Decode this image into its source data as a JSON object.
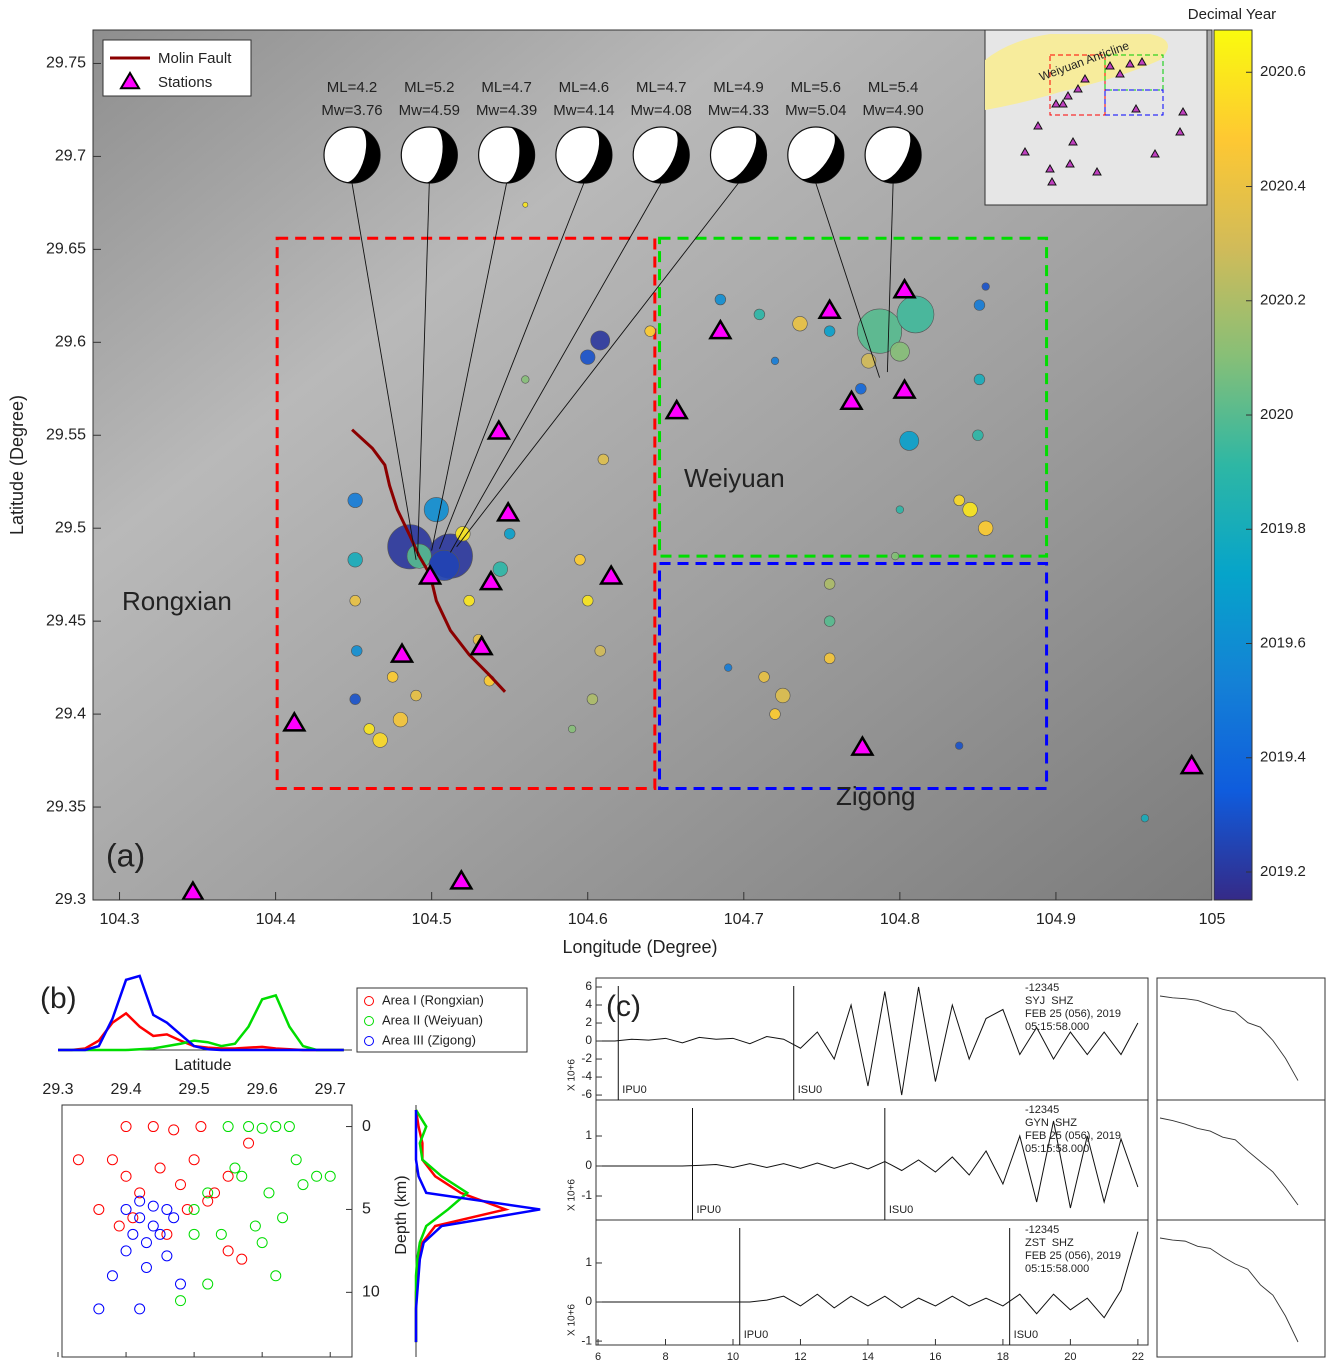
{
  "chart_data": [
    {
      "type": "map",
      "panel_label": "(a)",
      "x_label": "Longitude (Degree)",
      "y_label": "Latitude (Degree)",
      "xlim": [
        104.283,
        105
      ],
      "ylim": [
        29.3,
        29.768
      ],
      "xticks": [
        104.3,
        104.4,
        104.5,
        104.6,
        104.7,
        104.8,
        104.9,
        105
      ],
      "yticks": [
        29.3,
        29.35,
        29.4,
        29.45,
        29.5,
        29.55,
        29.6,
        29.65,
        29.7,
        29.75
      ],
      "colorbar": {
        "label": "Decimal Year",
        "lim": [
          2019.151,
          2020.674
        ],
        "ticks": [
          2019.2,
          2019.4,
          2019.6,
          2019.8,
          2020,
          2020.2,
          2020.4,
          2020.6
        ]
      },
      "fault": {
        "name": "Molin Fault",
        "color": "#8b0000",
        "x": [
          104.449,
          104.462,
          104.47,
          104.473,
          104.478,
          104.486,
          104.492,
          104.499,
          104.503,
          104.512,
          104.524,
          104.537,
          104.547
        ],
        "y": [
          29.553,
          29.543,
          29.534,
          29.523,
          29.51,
          29.496,
          29.485,
          29.475,
          29.461,
          29.445,
          29.432,
          29.421,
          29.412
        ]
      },
      "stations": {
        "name": "Stations",
        "color": "#ff00ff",
        "x": [
          104.347,
          104.519,
          104.412,
          104.481,
          104.499,
          104.532,
          104.538,
          104.549,
          104.543,
          104.615,
          104.657,
          104.685,
          104.755,
          104.769,
          104.803,
          104.803,
          104.776,
          104.987
        ],
        "y": [
          29.304,
          29.31,
          29.395,
          29.432,
          29.474,
          29.436,
          29.471,
          29.508,
          29.552,
          29.474,
          29.563,
          29.606,
          29.617,
          29.568,
          29.628,
          29.574,
          29.382,
          29.372
        ]
      },
      "events": {
        "x": [
          104.451,
          104.451,
          104.451,
          104.452,
          104.451,
          104.486,
          104.512,
          104.503,
          104.492,
          104.508,
          104.467,
          104.48,
          104.49,
          104.475,
          104.46,
          104.524,
          104.53,
          104.537,
          104.52,
          104.544,
          104.55,
          104.595,
          104.6,
          104.608,
          104.603,
          104.61,
          104.59,
          104.608,
          104.6,
          104.64,
          104.56,
          104.56,
          104.685,
          104.71,
          104.736,
          104.755,
          104.72,
          104.787,
          104.81,
          104.78,
          104.8,
          104.775,
          104.806,
          104.851,
          104.851,
          104.85,
          104.855,
          104.845,
          104.855,
          104.838,
          104.8,
          104.797,
          104.713,
          104.725,
          104.72,
          104.755,
          104.755,
          104.755,
          104.69,
          104.838,
          104.957
        ],
        "y": [
          29.515,
          29.483,
          29.461,
          29.434,
          29.408,
          29.49,
          29.485,
          29.51,
          29.485,
          29.48,
          29.386,
          29.397,
          29.41,
          29.42,
          29.392,
          29.461,
          29.44,
          29.418,
          29.497,
          29.478,
          29.497,
          29.483,
          29.461,
          29.434,
          29.408,
          29.537,
          29.392,
          29.601,
          29.592,
          29.606,
          29.58,
          29.674,
          29.623,
          29.615,
          29.61,
          29.606,
          29.59,
          29.606,
          29.615,
          29.59,
          29.595,
          29.575,
          29.547,
          29.62,
          29.58,
          29.55,
          29.63,
          29.51,
          29.5,
          29.515,
          29.51,
          29.485,
          29.42,
          29.41,
          29.4,
          29.45,
          29.47,
          29.43,
          29.425,
          29.383,
          29.344
        ],
        "size": [
          3,
          3,
          2.5,
          2.5,
          2.5,
          5.5,
          5.5,
          4,
          4,
          4.5,
          3,
          3,
          2.5,
          2.5,
          2.5,
          2.5,
          2.5,
          2.5,
          3,
          3,
          2.5,
          2.5,
          2.5,
          2.5,
          2.5,
          2.5,
          2,
          3.5,
          3,
          2.5,
          2,
          1.5,
          2.5,
          2.5,
          3,
          2.5,
          2,
          5.5,
          5,
          3,
          3.5,
          2.5,
          3.5,
          2.5,
          2.5,
          2.5,
          2,
          3,
          3,
          2.5,
          2,
          2,
          2.5,
          3,
          2.5,
          2.5,
          2.5,
          2.5,
          2,
          2,
          2
        ],
        "year": [
          2019.5,
          2019.8,
          2020.4,
          2019.6,
          2019.3,
          2019.2,
          2019.2,
          2019.6,
          2020,
          2019.25,
          2020.55,
          2020.45,
          2020.4,
          2020.5,
          2020.6,
          2020.6,
          2020.4,
          2020.5,
          2020.6,
          2019.9,
          2019.7,
          2020.5,
          2020.6,
          2020.3,
          2020.2,
          2020.35,
          2020.1,
          2019.2,
          2019.3,
          2020.5,
          2020.1,
          2020.6,
          2019.6,
          2019.9,
          2020.4,
          2019.7,
          2019.5,
          2020,
          2019.95,
          2020.3,
          2020.1,
          2019.4,
          2019.7,
          2019.5,
          2019.8,
          2019.9,
          2019.3,
          2020.6,
          2020.5,
          2020.55,
          2019.9,
          2020.1,
          2020.4,
          2020.35,
          2020.5,
          2020,
          2020.2,
          2020.45,
          2019.5,
          2019.3,
          2019.8
        ]
      },
      "mechanisms": [
        {
          "ml": "ML=4.2",
          "mw": "Mw=3.76",
          "x": 104.49,
          "y": 29.483
        },
        {
          "ml": "ML=5.2",
          "mw": "Mw=4.59",
          "x": 104.491,
          "y": 29.485
        },
        {
          "ml": "ML=4.7",
          "mw": "Mw=4.39",
          "x": 104.5,
          "y": 29.488
        },
        {
          "ml": "ML=4.6",
          "mw": "Mw=4.14",
          "x": 104.505,
          "y": 29.489
        },
        {
          "ml": "ML=4.7",
          "mw": "Mw=4.08",
          "x": 104.512,
          "y": 29.487
        },
        {
          "ml": "ML=4.9",
          "mw": "Mw=4.33",
          "x": 104.516,
          "y": 29.49
        },
        {
          "ml": "ML=5.6",
          "mw": "Mw=5.04",
          "x": 104.787,
          "y": 29.581
        },
        {
          "ml": "ML=5.4",
          "mw": "Mw=4.90",
          "x": 104.792,
          "y": 29.584
        }
      ],
      "regions": [
        {
          "color": "#ff0000",
          "xlim": [
            104.401,
            104.643
          ],
          "ylim": [
            29.36,
            29.656
          ]
        },
        {
          "color": "#00dd00",
          "xlim": [
            104.646,
            104.894
          ],
          "ylim": [
            29.485,
            29.656
          ]
        },
        {
          "color": "#0000ff",
          "xlim": [
            104.646,
            104.894
          ],
          "ylim": [
            29.36,
            29.481
          ]
        }
      ],
      "places": [
        "Rongxian",
        "Weiyuan",
        "Zigong"
      ],
      "inset_label": "Weiyuan Anticline"
    },
    {
      "type": "density",
      "panel_label": "(b)",
      "x_label": "Latitude",
      "xlim": [
        29.3,
        29.732
      ],
      "ylim": [
        0,
        1
      ],
      "xticks": [
        29.3,
        29.4,
        29.5,
        29.6,
        29.7
      ],
      "x": [
        29.3,
        29.32,
        29.34,
        29.36,
        29.38,
        29.4,
        29.42,
        29.44,
        29.46,
        29.48,
        29.5,
        29.52,
        29.54,
        29.56,
        29.58,
        29.6,
        29.62,
        29.64,
        29.66,
        29.68,
        29.7,
        29.72
      ],
      "series": [
        {
          "color": "#ff0000",
          "values": [
            0,
            0,
            0.02,
            0.12,
            0.35,
            0.47,
            0.3,
            0.18,
            0.2,
            0.12,
            0.05,
            0.03,
            0.02,
            0.02,
            0.03,
            0.04,
            0.02,
            0.01,
            0,
            0,
            0,
            0
          ]
        },
        {
          "color": "#00dd00",
          "values": [
            0,
            0,
            0,
            0,
            0,
            0,
            0.01,
            0.02,
            0.05,
            0.08,
            0.12,
            0.1,
            0.05,
            0.08,
            0.3,
            0.65,
            0.7,
            0.3,
            0.05,
            0,
            0,
            0
          ]
        },
        {
          "color": "#0000ff",
          "values": [
            0,
            0,
            0,
            0.05,
            0.4,
            0.9,
            0.95,
            0.45,
            0.35,
            0.2,
            0.05,
            0.01,
            0,
            0,
            0,
            0,
            0,
            0,
            0,
            0,
            0,
            0
          ]
        }
      ]
    },
    {
      "type": "scatter",
      "xlim": [
        29.3,
        29.732
      ],
      "ylim": [
        -1.3,
        13.9
      ],
      "y_inverted": true,
      "yticks": [
        0,
        5,
        10
      ],
      "series": [
        {
          "name": "Area I (Rongxian)",
          "color": "#ff0000",
          "x": [
            29.38,
            29.4,
            29.42,
            29.45,
            29.48,
            29.5,
            29.52,
            29.55,
            29.58,
            29.4,
            29.44,
            29.47,
            29.51,
            29.36,
            29.41,
            29.49,
            29.53,
            29.39,
            29.46,
            29.33,
            29.55,
            29.57
          ],
          "y": [
            2,
            3,
            4,
            2.5,
            3.5,
            2,
            4.5,
            3,
            1,
            0,
            0,
            0.2,
            0,
            5,
            5.5,
            5,
            4,
            6,
            6.5,
            2,
            7.5,
            8
          ]
        },
        {
          "name": "Area II (Weiyuan)",
          "color": "#00dd00",
          "x": [
            29.55,
            29.58,
            29.6,
            29.62,
            29.64,
            29.57,
            29.61,
            29.66,
            29.52,
            29.5,
            29.63,
            29.59,
            29.54,
            29.68,
            29.6,
            29.56,
            29.65,
            29.5,
            29.62,
            29.7,
            29.52,
            29.48
          ],
          "y": [
            0,
            0,
            0.1,
            0,
            0,
            3,
            4,
            3.5,
            4,
            5,
            5.5,
            6,
            6.5,
            3,
            7,
            2.5,
            2,
            6.5,
            9,
            3,
            9.5,
            10.5
          ]
        },
        {
          "name": "Area III (Zigong)",
          "color": "#0000ff",
          "x": [
            29.4,
            29.42,
            29.44,
            29.46,
            29.41,
            29.43,
            29.45,
            29.47,
            29.42,
            29.44,
            29.4,
            29.46,
            29.38,
            29.43,
            29.48,
            29.42,
            29.36
          ],
          "y": [
            5,
            5.5,
            6,
            5,
            6.5,
            7,
            6.5,
            5.5,
            4.5,
            4.8,
            7.5,
            7.8,
            9,
            8.5,
            9.5,
            11,
            11
          ]
        }
      ]
    },
    {
      "type": "density",
      "orientation": "vertical",
      "y_label": "Depth (km)",
      "xlim": [
        0,
        1
      ],
      "ylim": [
        -1.3,
        13.9
      ],
      "depth": [
        -1,
        0,
        1,
        2,
        3,
        4,
        5,
        6,
        7,
        8,
        9,
        10,
        11,
        12,
        13
      ],
      "series": [
        {
          "color": "#ff0000",
          "values": [
            0,
            0.02,
            0.05,
            0.05,
            0.15,
            0.35,
            0.7,
            0.15,
            0.05,
            0.02,
            0.01,
            0,
            0,
            0,
            0
          ]
        },
        {
          "color": "#00dd00",
          "values": [
            0,
            0.08,
            0.03,
            0.05,
            0.2,
            0.4,
            0.25,
            0.08,
            0.03,
            0.01,
            0,
            0,
            0,
            0,
            0
          ]
        },
        {
          "color": "#0000ff",
          "values": [
            0,
            0,
            0,
            0,
            0.02,
            0.08,
            0.97,
            0.2,
            0.06,
            0.03,
            0.02,
            0.01,
            0,
            0,
            0
          ]
        }
      ]
    },
    {
      "type": "seismogram",
      "panel_label": "(c)",
      "xlim": [
        5.94,
        22.3
      ],
      "xticks": [
        6,
        8,
        10,
        12,
        14,
        16,
        18,
        20,
        22
      ],
      "x": [
        6,
        6.5,
        7,
        7.5,
        8,
        8.5,
        9,
        9.5,
        10,
        10.5,
        11,
        11.5,
        12,
        12.5,
        13,
        13.5,
        14,
        14.5,
        15,
        15.5,
        16,
        16.5,
        17,
        17.5,
        18,
        18.5,
        19,
        19.5,
        20,
        20.5,
        21,
        21.5,
        22
      ],
      "traces": [
        {
          "header": [
            "-12345",
            "SYJ  SHZ",
            "FEB 25 (056), 2019",
            "05:15:58.000"
          ],
          "scale_label": "X 10+6",
          "ylim": [
            -6.55,
            7
          ],
          "yticks": [
            -6,
            -4,
            -2,
            0,
            2,
            4,
            6
          ],
          "values": [
            0,
            0,
            0.2,
            0.1,
            0.3,
            -0.2,
            0.4,
            0.2,
            0.3,
            -0.3,
            0.5,
            0.2,
            -0.8,
            1,
            -2,
            4,
            -5,
            5.5,
            -6,
            6,
            -4.5,
            4,
            -2,
            2.5,
            3.5,
            -1.5,
            1.5,
            -2,
            1,
            -1.5,
            1,
            -1.5,
            2
          ],
          "picks": [
            {
              "label": "IPU0",
              "x": 6.6
            },
            {
              "label": "ISU0",
              "x": 11.8
            }
          ],
          "spectrum": [
            1,
            0.98,
            0.97,
            0.95,
            0.9,
            0.85,
            0.82,
            0.7,
            0.65,
            0.5,
            0.3,
            0.05
          ]
        },
        {
          "header": [
            "-12345",
            "GYN  SHZ",
            "FEB 25 (056), 2019",
            "05:15:58.000"
          ],
          "scale_label": "X 10+6",
          "ylim": [
            -1.8,
            2.2
          ],
          "yticks": [
            -1,
            0,
            1
          ],
          "values": [
            0,
            0,
            0,
            0,
            0,
            0,
            0.02,
            0.05,
            -0.05,
            0.08,
            -0.05,
            0.08,
            -0.08,
            0.1,
            -0.08,
            0.1,
            -0.1,
            0.15,
            -0.15,
            0.2,
            -0.2,
            0.3,
            -0.3,
            0.5,
            -0.6,
            1,
            -1.2,
            1.5,
            -1.4,
            1,
            -1.2,
            0.9,
            -0.7
          ],
          "picks": [
            {
              "label": "IPU0",
              "x": 8.8
            },
            {
              "label": "ISU0",
              "x": 14.5
            }
          ],
          "spectrum": [
            1,
            0.97,
            0.93,
            0.88,
            0.85,
            0.78,
            0.75,
            0.62,
            0.5,
            0.38,
            0.2,
            0
          ]
        },
        {
          "header": [
            "-12345",
            "ZST  SHZ",
            "FEB 25 (056), 2019",
            "05:15:58.000"
          ],
          "scale_label": "X 10+6",
          "ylim": [
            -1.1,
            2.1
          ],
          "yticks": [
            -1,
            0,
            1
          ],
          "values": [
            0,
            0,
            0,
            0,
            0,
            0,
            0,
            0,
            0,
            0,
            0.05,
            0.15,
            -0.1,
            0.2,
            -0.15,
            0.15,
            -0.1,
            0.15,
            -0.15,
            0.1,
            -0.1,
            0.15,
            -0.1,
            0.1,
            -0.1,
            0.2,
            -0.3,
            0.2,
            -0.2,
            0.1,
            -0.4,
            0.3,
            1.8
          ],
          "picks": [
            {
              "label": "IPU0",
              "x": 10.2
            },
            {
              "label": "ISU0",
              "x": 18.2
            }
          ],
          "spectrum": [
            1,
            0.98,
            0.97,
            0.92,
            0.9,
            0.82,
            0.75,
            0.7,
            0.55,
            0.45,
            0.25,
            0
          ]
        }
      ]
    }
  ]
}
